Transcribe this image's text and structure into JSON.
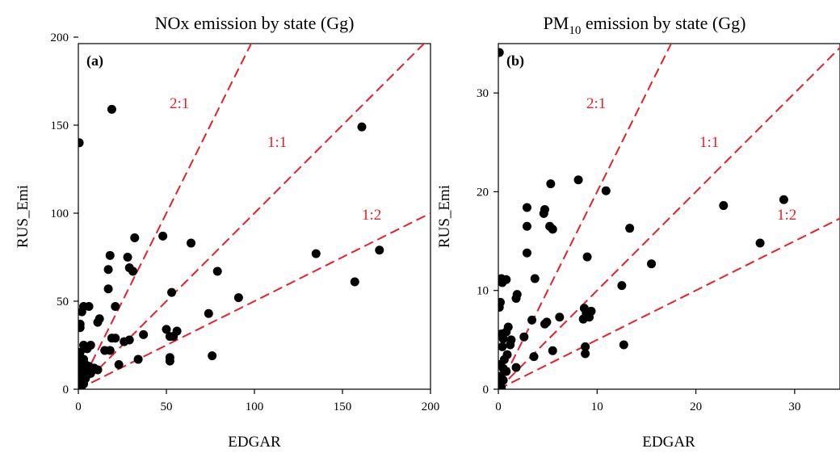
{
  "colors": {
    "reference_line": "#e8202a",
    "point": "#000000"
  },
  "chart_data": [
    {
      "type": "scatter",
      "title": "NOx emission by state (Gg)",
      "title_sub": "",
      "title_rest": "",
      "panel_label": "(a)",
      "xlabel": "EDGAR",
      "ylabel": "RUS_Emi",
      "xlim": [
        0,
        200
      ],
      "ylim": [
        0,
        200
      ],
      "xticks": [
        0,
        50,
        100,
        150,
        200
      ],
      "yticks": [
        0,
        50,
        100,
        150,
        200
      ],
      "grid": false,
      "reference_lines": [
        {
          "label": "2:1",
          "slope": 2
        },
        {
          "label": "1:1",
          "slope": 1
        },
        {
          "label": "1:2",
          "slope": 0.5
        }
      ],
      "points": [
        [
          0.5,
          140
        ],
        [
          19,
          159
        ],
        [
          161,
          149
        ],
        [
          171,
          79
        ],
        [
          157,
          61
        ],
        [
          135,
          77
        ],
        [
          48,
          87
        ],
        [
          32,
          86
        ],
        [
          64,
          83
        ],
        [
          18,
          76
        ],
        [
          28,
          75
        ],
        [
          29,
          69
        ],
        [
          31,
          67
        ],
        [
          17,
          68
        ],
        [
          79,
          67
        ],
        [
          17,
          57
        ],
        [
          53,
          55
        ],
        [
          91,
          52
        ],
        [
          3,
          47
        ],
        [
          6,
          47
        ],
        [
          2,
          44
        ],
        [
          21,
          47
        ],
        [
          74,
          43
        ],
        [
          12,
          40
        ],
        [
          11,
          38
        ],
        [
          1,
          37
        ],
        [
          1,
          35
        ],
        [
          37,
          31
        ],
        [
          50,
          34
        ],
        [
          56,
          33
        ],
        [
          54,
          30
        ],
        [
          52,
          30
        ],
        [
          19,
          29
        ],
        [
          21,
          29
        ],
        [
          29,
          28
        ],
        [
          26,
          27
        ],
        [
          3,
          25
        ],
        [
          7,
          25
        ],
        [
          5,
          23
        ],
        [
          15,
          22
        ],
        [
          18,
          22
        ],
        [
          76,
          19
        ],
        [
          52,
          18
        ],
        [
          52,
          16
        ],
        [
          34,
          17
        ],
        [
          23,
          14
        ],
        [
          1,
          21
        ],
        [
          1,
          18
        ],
        [
          3,
          17
        ],
        [
          2,
          15
        ],
        [
          4,
          14
        ],
        [
          6,
          13
        ],
        [
          9,
          12
        ],
        [
          11,
          11
        ],
        [
          1,
          11
        ],
        [
          3,
          10
        ],
        [
          5,
          9
        ],
        [
          7,
          9
        ],
        [
          2,
          8
        ],
        [
          1,
          7
        ],
        [
          4,
          6
        ],
        [
          2,
          5
        ],
        [
          0.5,
          4
        ],
        [
          1,
          3
        ],
        [
          3,
          3
        ],
        [
          0.5,
          2
        ],
        [
          2,
          2
        ],
        [
          0.3,
          1
        ],
        [
          1,
          1
        ],
        [
          0.5,
          0.5
        ]
      ]
    },
    {
      "type": "scatter",
      "title": "",
      "title_pre": "PM",
      "title_sub": "10",
      "title_rest": " emission by state (Gg)",
      "panel_label": "(b)",
      "xlabel": "EDGAR",
      "ylabel": "RUS_Emi",
      "xlim": [
        0,
        35
      ],
      "ylim": [
        0,
        35
      ],
      "xticks": [
        0,
        10,
        20,
        30
      ],
      "yticks": [
        0,
        10,
        20,
        30
      ],
      "grid": false,
      "reference_lines": [
        {
          "label": "2:1",
          "slope": 2
        },
        {
          "label": "1:1",
          "slope": 1
        },
        {
          "label": "1:2",
          "slope": 0.5
        }
      ],
      "points": [
        [
          0.1,
          34.1
        ],
        [
          8.1,
          21.2
        ],
        [
          5.3,
          20.8
        ],
        [
          10.9,
          20.1
        ],
        [
          28.9,
          19.2
        ],
        [
          22.8,
          18.6
        ],
        [
          2.9,
          18.4
        ],
        [
          4.7,
          18.2
        ],
        [
          4.6,
          17.8
        ],
        [
          5.2,
          16.5
        ],
        [
          2.9,
          16.5
        ],
        [
          13.3,
          16.3
        ],
        [
          5.5,
          16.2
        ],
        [
          26.5,
          14.8
        ],
        [
          2.9,
          13.8
        ],
        [
          9.0,
          13.4
        ],
        [
          15.5,
          12.7
        ],
        [
          0.3,
          11.2
        ],
        [
          0.8,
          11.1
        ],
        [
          0.4,
          10.8
        ],
        [
          3.7,
          11.2
        ],
        [
          12.5,
          10.5
        ],
        [
          1.9,
          9.6
        ],
        [
          1.8,
          9.2
        ],
        [
          0.2,
          8.8
        ],
        [
          0.1,
          8.3
        ],
        [
          8.7,
          8.2
        ],
        [
          9.4,
          7.9
        ],
        [
          8.9,
          7.7
        ],
        [
          6.2,
          7.3
        ],
        [
          9.2,
          7.3
        ],
        [
          8.6,
          7.1
        ],
        [
          3.4,
          7.0
        ],
        [
          4.7,
          6.6
        ],
        [
          4.9,
          6.8
        ],
        [
          1.0,
          6.3
        ],
        [
          0.3,
          5.6
        ],
        [
          0.8,
          5.8
        ],
        [
          2.6,
          5.3
        ],
        [
          1.3,
          5.0
        ],
        [
          0.5,
          5.1
        ],
        [
          0.4,
          4.3
        ],
        [
          1.2,
          4.5
        ],
        [
          12.7,
          4.5
        ],
        [
          8.8,
          4.3
        ],
        [
          5.5,
          3.9
        ],
        [
          8.8,
          3.6
        ],
        [
          3.6,
          3.3
        ],
        [
          0.9,
          3.5
        ],
        [
          0.6,
          3.0
        ],
        [
          0.2,
          2.5
        ],
        [
          0.5,
          2.1
        ],
        [
          1.8,
          2.2
        ],
        [
          0.8,
          1.8
        ],
        [
          0.2,
          1.3
        ],
        [
          0.5,
          0.9
        ],
        [
          0.1,
          0.5
        ],
        [
          0.3,
          0.2
        ]
      ]
    }
  ]
}
